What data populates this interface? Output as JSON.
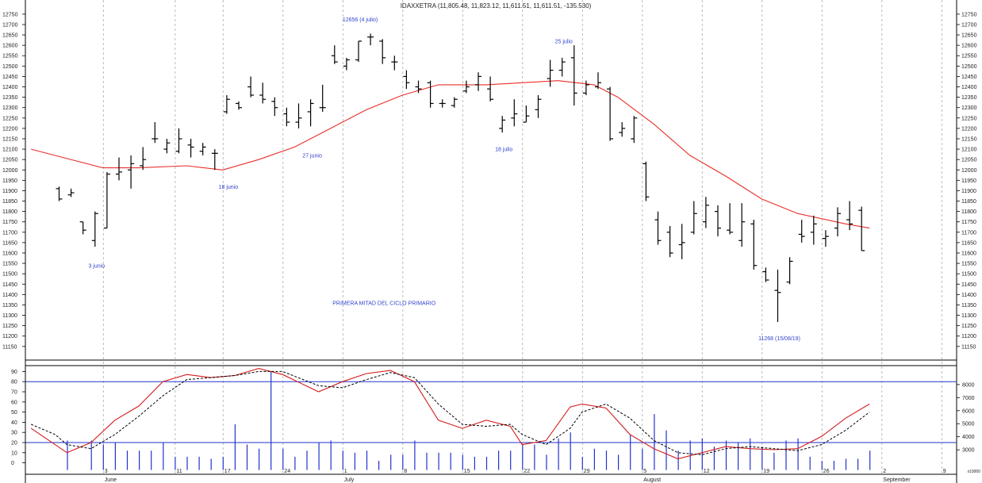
{
  "chart_data": {
    "type": "bar",
    "title": "IDAXXETRA (11,805.48, 11,823.12, 11,611.51, 11,611.51, -135.530)",
    "price_axis": {
      "ylim": [
        11115,
        12780
      ],
      "ticks": [
        11150,
        11200,
        11250,
        11300,
        11350,
        11400,
        11450,
        11500,
        11550,
        11600,
        11650,
        11700,
        11750,
        11800,
        11850,
        11900,
        11950,
        12000,
        12050,
        12100,
        12150,
        12200,
        12250,
        12300,
        12350,
        12400,
        12450,
        12500,
        12550,
        12600,
        12650,
        12700,
        12750
      ]
    },
    "stoch_axis": {
      "ylim": [
        -5,
        95
      ],
      "ticks": [
        0,
        10,
        20,
        30,
        40,
        50,
        60,
        70,
        80,
        90
      ],
      "levels": [
        20,
        80
      ]
    },
    "volume_axis": {
      "ticks": [
        3000,
        4000,
        5000,
        6000,
        7000,
        8000
      ],
      "unit": "x10000"
    },
    "x_labels": [
      {
        "text": "3",
        "day": 3,
        "major": false
      },
      {
        "text": "June",
        "day": 3,
        "major": true
      },
      {
        "text": "11",
        "day": 9,
        "major": false
      },
      {
        "text": "17",
        "day": 13,
        "major": false
      },
      {
        "text": "24",
        "day": 18,
        "major": false
      },
      {
        "text": "1",
        "day": 23,
        "major": false
      },
      {
        "text": "July",
        "day": 23,
        "major": true
      },
      {
        "text": "8",
        "day": 28,
        "major": false
      },
      {
        "text": "15",
        "day": 33,
        "major": false
      },
      {
        "text": "22",
        "day": 38,
        "major": false
      },
      {
        "text": "29",
        "day": 43,
        "major": false
      },
      {
        "text": "5",
        "day": 48,
        "major": false
      },
      {
        "text": "August",
        "day": 48,
        "major": true
      },
      {
        "text": "12",
        "day": 53,
        "major": false
      },
      {
        "text": "19",
        "day": 58,
        "major": false
      },
      {
        "text": "26",
        "day": 63,
        "major": false
      },
      {
        "text": "2",
        "day": 68,
        "major": false
      },
      {
        "text": "September",
        "day": 68,
        "major": true
      },
      {
        "text": "9",
        "day": 73,
        "major": false
      }
    ],
    "bars": [
      {
        "day": 0,
        "o": 11910,
        "h": 11920,
        "l": 11850,
        "c": 11860
      },
      {
        "day": 1,
        "o": 11880,
        "h": 11910,
        "l": 11870,
        "c": 11890
      },
      {
        "day": 2,
        "o": 11750,
        "h": 11750,
        "l": 11690,
        "c": 11710
      },
      {
        "day": 3,
        "o": 11660,
        "h": 11800,
        "l": 11630,
        "c": 11790
      },
      {
        "day": 4,
        "o": 11720,
        "h": 11990,
        "l": 11720,
        "c": 11980
      },
      {
        "day": 5,
        "o": 11980,
        "h": 12060,
        "l": 11950,
        "c": 11990
      },
      {
        "day": 6,
        "o": 12000,
        "h": 12070,
        "l": 11910,
        "c": 12030
      },
      {
        "day": 7,
        "o": 12020,
        "h": 12110,
        "l": 12000,
        "c": 12050
      },
      {
        "day": 8,
        "o": 12150,
        "h": 12230,
        "l": 12130,
        "c": 12150
      },
      {
        "day": 9,
        "o": 12100,
        "h": 12150,
        "l": 12080,
        "c": 12130
      },
      {
        "day": 10,
        "o": 12090,
        "h": 12200,
        "l": 12080,
        "c": 12150
      },
      {
        "day": 11,
        "o": 12120,
        "h": 12150,
        "l": 12060,
        "c": 12110
      },
      {
        "day": 12,
        "o": 12090,
        "h": 12130,
        "l": 12070,
        "c": 12110
      },
      {
        "day": 13,
        "o": 12080,
        "h": 12100,
        "l": 12000,
        "c": 12080
      },
      {
        "day": 14,
        "o": 12280,
        "h": 12360,
        "l": 12270,
        "c": 12340
      },
      {
        "day": 15,
        "o": 12320,
        "h": 12330,
        "l": 12290,
        "c": 12300
      },
      {
        "day": 16,
        "o": 12400,
        "h": 12450,
        "l": 12350,
        "c": 12360
      },
      {
        "day": 17,
        "o": 12360,
        "h": 12420,
        "l": 12320,
        "c": 12340
      },
      {
        "day": 18,
        "o": 12330,
        "h": 12350,
        "l": 12260,
        "c": 12300
      },
      {
        "day": 19,
        "o": 12270,
        "h": 12300,
        "l": 12210,
        "c": 12230
      },
      {
        "day": 20,
        "o": 12230,
        "h": 12320,
        "l": 12200,
        "c": 12250
      },
      {
        "day": 21,
        "o": 12280,
        "h": 12340,
        "l": 12210,
        "c": 12320
      },
      {
        "day": 22,
        "o": 12300,
        "h": 12410,
        "l": 12280,
        "c": 12300
      },
      {
        "day": 23,
        "o": 12550,
        "h": 12600,
        "l": 12510,
        "c": 12520
      },
      {
        "day": 24,
        "o": 12500,
        "h": 12540,
        "l": 12480,
        "c": 12530
      },
      {
        "day": 25,
        "o": 12530,
        "h": 12620,
        "l": 12520,
        "c": 12620
      },
      {
        "day": 26,
        "o": 12640,
        "h": 12656,
        "l": 12600,
        "c": 12640
      },
      {
        "day": 27,
        "o": 12620,
        "h": 12630,
        "l": 12510,
        "c": 12540
      },
      {
        "day": 28,
        "o": 12520,
        "h": 12550,
        "l": 12480,
        "c": 12520
      },
      {
        "day": 29,
        "o": 12450,
        "h": 12480,
        "l": 12390,
        "c": 12420
      },
      {
        "day": 30,
        "o": 12400,
        "h": 12430,
        "l": 12370,
        "c": 12390
      },
      {
        "day": 31,
        "o": 12420,
        "h": 12430,
        "l": 12300,
        "c": 12320
      },
      {
        "day": 32,
        "o": 12320,
        "h": 12340,
        "l": 12300,
        "c": 12320
      },
      {
        "day": 33,
        "o": 12310,
        "h": 12350,
        "l": 12300,
        "c": 12340
      },
      {
        "day": 34,
        "o": 12380,
        "h": 12430,
        "l": 12370,
        "c": 12400
      },
      {
        "day": 35,
        "o": 12410,
        "h": 12470,
        "l": 12380,
        "c": 12450
      },
      {
        "day": 36,
        "o": 12390,
        "h": 12450,
        "l": 12330,
        "c": 12340
      },
      {
        "day": 37,
        "o": 12200,
        "h": 12260,
        "l": 12180,
        "c": 12240
      },
      {
        "day": 38,
        "o": 12250,
        "h": 12340,
        "l": 12210,
        "c": 12270
      },
      {
        "day": 39,
        "o": 12230,
        "h": 12310,
        "l": 12230,
        "c": 12260
      },
      {
        "day": 40,
        "o": 12290,
        "h": 12360,
        "l": 12250,
        "c": 12340
      },
      {
        "day": 41,
        "o": 12440,
        "h": 12530,
        "l": 12400,
        "c": 12480
      },
      {
        "day": 42,
        "o": 12480,
        "h": 12540,
        "l": 12450,
        "c": 12520
      },
      {
        "day": 43,
        "o": 12540,
        "h": 12600,
        "l": 12310,
        "c": 12370
      },
      {
        "day": 44,
        "o": 12370,
        "h": 12430,
        "l": 12360,
        "c": 12410
      },
      {
        "day": 45,
        "o": 12400,
        "h": 12470,
        "l": 12390,
        "c": 12420
      },
      {
        "day": 46,
        "o": 12390,
        "h": 12400,
        "l": 12140,
        "c": 12150
      },
      {
        "day": 47,
        "o": 12180,
        "h": 12230,
        "l": 12160,
        "c": 12200
      },
      {
        "day": 48,
        "o": 12150,
        "h": 12260,
        "l": 12130,
        "c": 12250
      },
      {
        "day": 49,
        "o": 12030,
        "h": 12040,
        "l": 11850,
        "c": 11870
      },
      {
        "day": 50,
        "o": 11760,
        "h": 11800,
        "l": 11640,
        "c": 11660
      },
      {
        "day": 51,
        "o": 11700,
        "h": 11730,
        "l": 11580,
        "c": 11600
      },
      {
        "day": 52,
        "o": 11640,
        "h": 11740,
        "l": 11570,
        "c": 11650
      },
      {
        "day": 53,
        "o": 11700,
        "h": 11850,
        "l": 11690,
        "c": 11790
      },
      {
        "day": 54,
        "o": 11750,
        "h": 11870,
        "l": 11720,
        "c": 11830
      },
      {
        "day": 55,
        "o": 11800,
        "h": 11830,
        "l": 11680,
        "c": 11720
      },
      {
        "day": 56,
        "o": 11710,
        "h": 11840,
        "l": 11690,
        "c": 11700
      },
      {
        "day": 57,
        "o": 11660,
        "h": 11840,
        "l": 11630,
        "c": 11750
      },
      {
        "day": 58,
        "o": 11740,
        "h": 11760,
        "l": 11520,
        "c": 11540
      },
      {
        "day": 59,
        "o": 11510,
        "h": 11530,
        "l": 11460,
        "c": 11470
      },
      {
        "day": 60,
        "o": 11420,
        "h": 11520,
        "l": 11268,
        "c": 11410
      },
      {
        "day": 61,
        "o": 11460,
        "h": 11580,
        "l": 11450,
        "c": 11560
      },
      {
        "day": 62,
        "o": 11690,
        "h": 11760,
        "l": 11650,
        "c": 11680
      },
      {
        "day": 63,
        "o": 11700,
        "h": 11780,
        "l": 11640,
        "c": 11740
      },
      {
        "day": 64,
        "o": 11670,
        "h": 11710,
        "l": 11630,
        "c": 11680
      },
      {
        "day": 65,
        "o": 11720,
        "h": 11820,
        "l": 11680,
        "c": 11790
      },
      {
        "day": 66,
        "o": 11760,
        "h": 11850,
        "l": 11710,
        "c": 11740
      },
      {
        "day": 67,
        "o": 11805.48,
        "h": 11823.12,
        "l": 11611.51,
        "c": 11611.51
      }
    ],
    "moving_average": {
      "days": [
        -3,
        3,
        6,
        10,
        13,
        16,
        19,
        22,
        25,
        28,
        31,
        35,
        38,
        41,
        44,
        46,
        49,
        52,
        55,
        58,
        61,
        65,
        67
      ],
      "values": [
        12100,
        12010,
        12010,
        12020,
        12000,
        12050,
        12110,
        12200,
        12290,
        12360,
        12410,
        12410,
        12420,
        12430,
        12410,
        12350,
        12220,
        12070,
        11970,
        11860,
        11790,
        11740,
        11720
      ]
    },
    "stochastic_k": {
      "days": [
        -3,
        -1,
        0,
        2,
        4,
        6,
        8,
        10,
        12,
        14,
        16,
        18,
        21,
        23,
        25,
        27,
        29,
        31,
        33,
        35,
        37,
        38,
        40,
        42,
        43,
        45,
        47,
        49,
        51,
        53,
        55,
        57,
        59,
        61,
        63,
        65,
        67
      ],
      "values": [
        34,
        18,
        10,
        20,
        42,
        56,
        80,
        87,
        84,
        86,
        93,
        87,
        70,
        80,
        88,
        91,
        80,
        42,
        34,
        42,
        36,
        18,
        22,
        55,
        58,
        54,
        28,
        14,
        4,
        10,
        16,
        14,
        13,
        14,
        26,
        44,
        58
      ]
    },
    "stochastic_d": {
      "days": [
        -3,
        -1,
        0,
        2,
        4,
        6,
        8,
        10,
        12,
        14,
        16,
        18,
        21,
        23,
        25,
        27,
        29,
        31,
        33,
        35,
        37,
        38,
        40,
        42,
        43,
        45,
        47,
        49,
        51,
        53,
        55,
        57,
        59,
        61,
        63,
        65,
        67
      ],
      "values": [
        38,
        28,
        18,
        14,
        28,
        46,
        66,
        82,
        84,
        86,
        90,
        90,
        76,
        74,
        82,
        89,
        84,
        58,
        38,
        36,
        38,
        28,
        18,
        34,
        50,
        58,
        44,
        22,
        10,
        8,
        14,
        16,
        14,
        12,
        18,
        32,
        50
      ]
    },
    "volume": {
      "days": [
        0,
        2,
        3,
        4,
        5,
        6,
        7,
        8,
        9,
        10,
        11,
        12,
        13,
        14,
        15,
        16,
        17,
        18,
        19,
        20,
        21,
        22,
        23,
        24,
        25,
        26,
        27,
        28,
        29,
        30,
        31,
        32,
        33,
        34,
        35,
        36,
        37,
        38,
        39,
        40,
        41,
        42,
        43,
        44,
        45,
        46,
        47,
        48,
        49,
        50,
        51,
        52,
        53,
        54,
        55,
        56,
        57,
        58,
        59,
        60,
        61,
        62,
        63,
        64,
        65,
        66,
        67
      ],
      "values": [
        22,
        22,
        18,
        20,
        12,
        12,
        12,
        20,
        6,
        6,
        6,
        4,
        6,
        38,
        18,
        14,
        90,
        14,
        6,
        12,
        20,
        22,
        12,
        10,
        12,
        2,
        8,
        8,
        22,
        10,
        10,
        10,
        8,
        6,
        6,
        12,
        12,
        18,
        18,
        8,
        24,
        30,
        6,
        14,
        12,
        8,
        28,
        14,
        48,
        32,
        12,
        22,
        24,
        16,
        22,
        20,
        24,
        16,
        10,
        22,
        24,
        6,
        2,
        2,
        4,
        4,
        12
      ]
    },
    "annotations": [
      {
        "text": "3 junio",
        "day": 3,
        "price": 11530
      },
      {
        "text": "18 junio",
        "day": 14,
        "price": 11910
      },
      {
        "text": "27 junio",
        "day": 21,
        "price": 12060
      },
      {
        "text": "12656 (4 julio)",
        "day": 25,
        "price": 12715
      },
      {
        "text": "18 julio",
        "day": 37,
        "price": 12090
      },
      {
        "text": "25 julio",
        "day": 42,
        "price": 12610
      },
      {
        "text": "11268 (15/08/19)",
        "day": 60,
        "price": 11180
      },
      {
        "text": "PRIMERA MITAD DEL CICLO PRIMARIO",
        "day": 27,
        "price": 11350
      }
    ],
    "colors": {
      "price_bars": "#000000",
      "moving_average": "#e8302a",
      "stoch_k": "#d21c1c",
      "stoch_d": "#000000",
      "volume": "#2233cc",
      "levels": "#2233cc",
      "annotation": "#3344cc",
      "gridlines": "#aaaaaa"
    }
  }
}
